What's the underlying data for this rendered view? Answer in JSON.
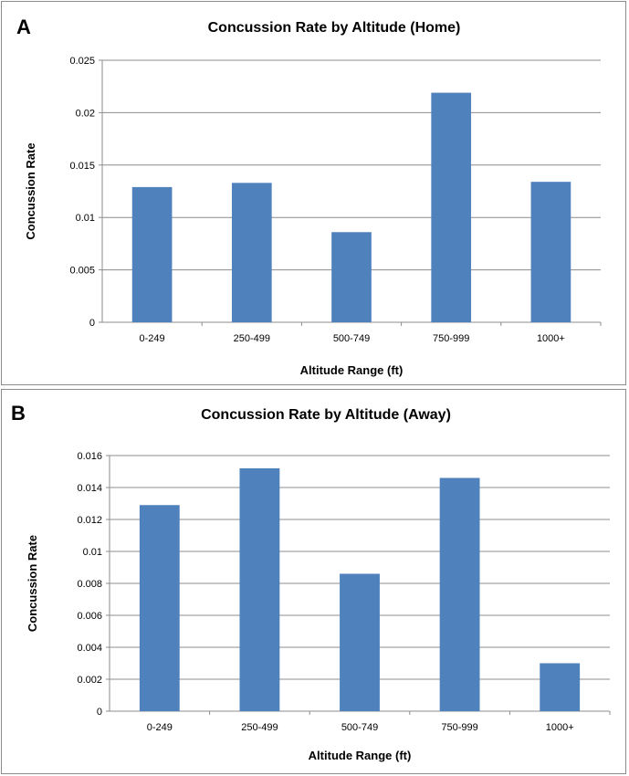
{
  "chart_data": [
    {
      "panel_label": "A",
      "type": "bar",
      "title": "Concussion Rate by Altitude (Home)",
      "xlabel": "Altitude Range (ft)",
      "ylabel": "Concussion Rate",
      "categories": [
        "0-249",
        "250-499",
        "500-749",
        "750-999",
        "1000+"
      ],
      "values": [
        0.0129,
        0.0133,
        0.0086,
        0.0219,
        0.0134
      ],
      "ylim": [
        0,
        0.025
      ],
      "yticks": [
        "0",
        "0.005",
        "0.01",
        "0.015",
        "0.02",
        "0.025"
      ],
      "grid": true,
      "bar_color": "#4f81bd"
    },
    {
      "panel_label": "B",
      "type": "bar",
      "title": "Concussion Rate by Altitude (Away)",
      "xlabel": "Altitude Range (ft)",
      "ylabel": "Concussion Rate",
      "categories": [
        "0-249",
        "250-499",
        "500-749",
        "750-999",
        "1000+"
      ],
      "values": [
        0.0129,
        0.0152,
        0.0086,
        0.0146,
        0.003
      ],
      "ylim": [
        0,
        0.016
      ],
      "yticks": [
        "0",
        "0.002",
        "0.004",
        "0.006",
        "0.008",
        "0.01",
        "0.012",
        "0.014",
        "0.016"
      ],
      "grid": true,
      "bar_color": "#4f81bd"
    }
  ]
}
